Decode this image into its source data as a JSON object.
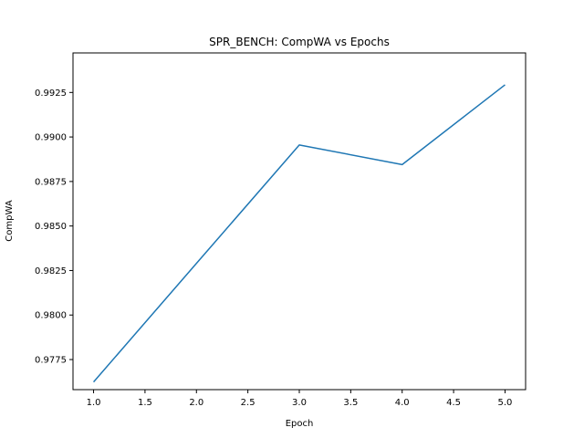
{
  "chart_data": {
    "type": "line",
    "title": "SPR_BENCH: CompWA vs Epochs",
    "xlabel": "Epoch",
    "ylabel": "CompWA",
    "xlim": [
      0.8,
      5.2
    ],
    "ylim": [
      0.97581,
      0.99472
    ],
    "x_ticks": [
      1.0,
      1.5,
      2.0,
      2.5,
      3.0,
      3.5,
      4.0,
      4.5,
      5.0
    ],
    "x_tick_labels": [
      "1.0",
      "1.5",
      "2.0",
      "2.5",
      "3.0",
      "3.5",
      "4.0",
      "4.5",
      "5.0"
    ],
    "y_ticks": [
      0.9775,
      0.98,
      0.9825,
      0.985,
      0.9875,
      0.99,
      0.9925
    ],
    "y_tick_labels": [
      "0.9775",
      "0.9800",
      "0.9825",
      "0.9850",
      "0.9875",
      "0.9900",
      "0.9925"
    ],
    "grid": false,
    "series": [
      {
        "color": "#1f77b4",
        "x": [
          1,
          2,
          3,
          4,
          5
        ],
        "y": [
          0.97624,
          0.9829,
          0.98955,
          0.98845,
          0.99293
        ]
      }
    ]
  }
}
